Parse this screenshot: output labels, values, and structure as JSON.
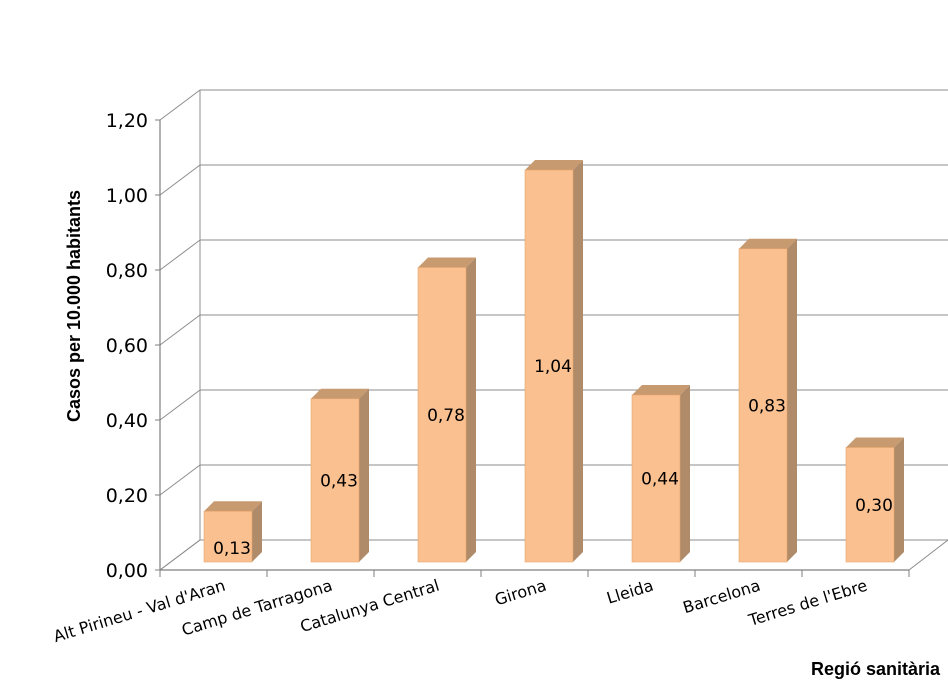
{
  "chart_data": {
    "type": "bar",
    "style": "3d-column",
    "categories": [
      "Alt Pirineu - Val d'Aran",
      "Camp de Tarragona",
      "Catalunya Central",
      "Girona",
      "Lleida",
      "Barcelona",
      "Terres de l'Ebre"
    ],
    "values": [
      0.13,
      0.43,
      0.78,
      1.04,
      0.44,
      0.83,
      0.3
    ],
    "value_labels": [
      "0,13",
      "0,43",
      "0,78",
      "1,04",
      "0,44",
      "0,83",
      "0,30"
    ],
    "yticks": [
      "0,00",
      "0,20",
      "0,40",
      "0,60",
      "0,80",
      "1,00",
      "1,20"
    ],
    "ylim": [
      0,
      1.2
    ],
    "ylabel": "Casos per 10.000 habitants",
    "xlabel": "Regió sanitària",
    "grid": true,
    "legend": "none",
    "colors": {
      "bar_front": "#FAC090",
      "bar_side": "#B08B6A",
      "bar_top": "#C89A70",
      "bar_edge": "#E6A46C",
      "grid": "#8C8C8C",
      "axis": "#7F7F7F"
    }
  }
}
